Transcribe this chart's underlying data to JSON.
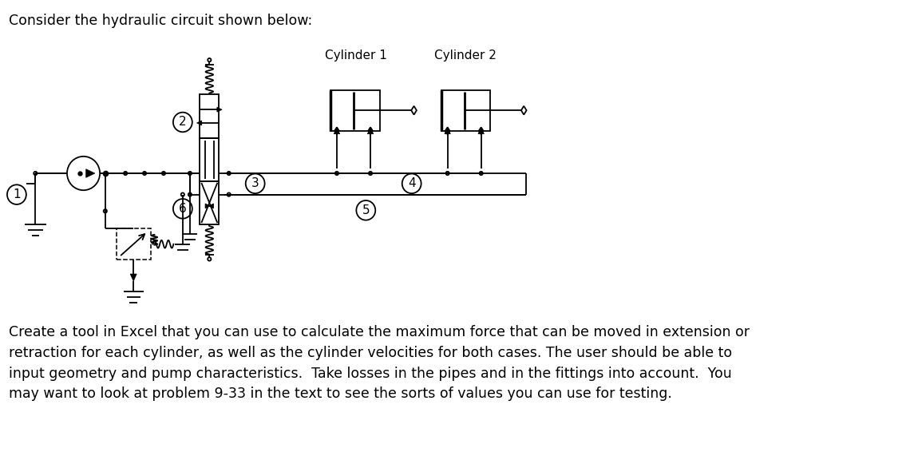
{
  "title": "Consider the hydraulic circuit shown below:",
  "cylinder1_label": "Cylinder 1",
  "cylinder2_label": "Cylinder 2",
  "body_text": "Create a tool in Excel that you can use to calculate the maximum force that can be moved in extension or\nretraction for each cylinder, as well as the cylinder velocities for both cases. The user should be able to\ninput geometry and pump characteristics.  Take losses in the pipes and in the fittings into account.  You\nmay want to look at problem 9-33 in the text to see the sorts of values you can use for testing.",
  "bg_color": "#ffffff",
  "line_color": "#000000",
  "font_size_title": 12.5,
  "font_size_body": 12.5,
  "font_size_label": 11
}
